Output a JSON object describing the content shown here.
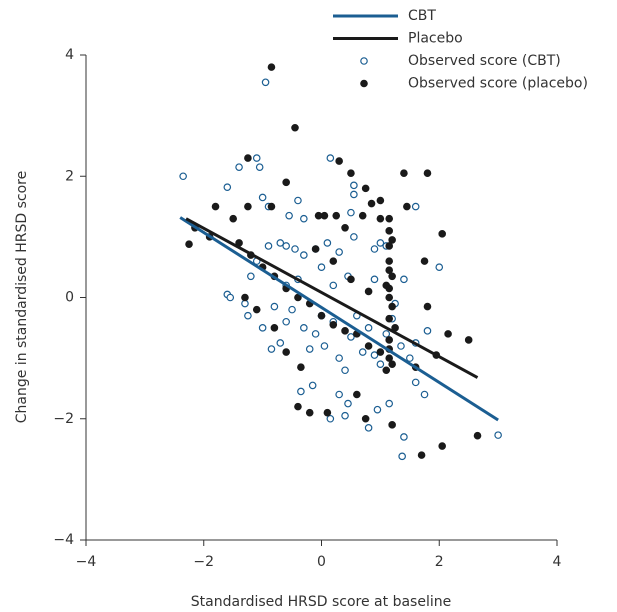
{
  "chart_data": {
    "type": "scatter",
    "x_label": "Standardised HRSD score at baseline",
    "y_label": "Change in standardised HRSD score",
    "xlim": [
      -4,
      4
    ],
    "ylim": [
      -4,
      4
    ],
    "xticks": [
      {
        "value": -4,
        "label": "−4"
      },
      {
        "value": -2,
        "label": "−2"
      },
      0,
      2,
      4
    ],
    "yticks": [
      {
        "value": -4,
        "label": "−4"
      },
      {
        "value": -2,
        "label": "−2"
      },
      0,
      2,
      4
    ],
    "legend": "top-right",
    "series": [
      {
        "name": "CBT",
        "type": "line",
        "color": "#1b5e92",
        "x": [
          -2.4,
          3.0
        ],
        "values": [
          1.32,
          -2.02
        ]
      },
      {
        "name": "Placebo",
        "type": "line",
        "color": "#1a1a1a",
        "x": [
          -2.3,
          2.65
        ],
        "values": [
          1.3,
          -1.32
        ]
      },
      {
        "name": "Observed score (CBT)",
        "type": "scatter",
        "marker": "open",
        "color": "#1b5e92",
        "x": [
          -2.35,
          -0.95,
          -1.6,
          -1.4,
          -1.1,
          -1.05,
          -0.4,
          -1.0,
          -0.9,
          0.15,
          0.55,
          0.55,
          -0.55,
          -0.3,
          0.5,
          1.6,
          2.0,
          -1.6,
          -1.55,
          -1.3,
          -1.25,
          -1.2,
          -1.1,
          -0.9,
          -0.7,
          -0.6,
          -0.45,
          -0.3,
          -0.1,
          0.0,
          0.1,
          0.3,
          0.55,
          0.9,
          1.0,
          1.1,
          1.4,
          -1.0,
          -0.85,
          -0.7,
          -0.6,
          -0.5,
          -0.4,
          -0.3,
          -0.2,
          -0.1,
          0.0,
          0.05,
          0.2,
          0.3,
          0.4,
          0.5,
          0.6,
          0.7,
          0.8,
          0.9,
          1.0,
          1.1,
          1.2,
          1.35,
          1.5,
          1.6,
          1.8,
          1.75,
          1.4,
          0.8,
          0.4,
          0.15,
          -0.35,
          -0.15,
          0.3,
          0.45,
          0.95,
          1.6,
          3.0,
          1.15,
          -0.8,
          -0.6,
          0.2,
          0.45,
          0.9,
          1.25,
          1.37
        ],
        "values": [
          2.0,
          3.55,
          1.82,
          2.15,
          2.3,
          2.15,
          1.6,
          1.65,
          1.5,
          2.3,
          1.85,
          1.7,
          1.35,
          1.3,
          1.4,
          1.5,
          0.5,
          0.05,
          0.0,
          -0.1,
          -0.3,
          0.35,
          0.6,
          0.85,
          0.9,
          0.85,
          0.8,
          0.7,
          0.8,
          0.5,
          0.9,
          0.75,
          1.0,
          0.8,
          0.9,
          0.85,
          0.3,
          -0.5,
          -0.85,
          -0.75,
          -0.4,
          -0.2,
          0.3,
          -0.5,
          -0.85,
          -0.6,
          -0.3,
          -0.8,
          -0.4,
          -1.0,
          -1.2,
          -0.65,
          -0.3,
          -0.9,
          -0.5,
          -0.95,
          -1.1,
          -0.6,
          -0.35,
          -0.8,
          -1.0,
          -1.4,
          -0.55,
          -1.6,
          -2.3,
          -2.15,
          -1.95,
          -2.0,
          -1.55,
          -1.45,
          -1.6,
          -1.75,
          -1.85,
          -0.75,
          -2.27,
          -1.75,
          -0.15,
          0.2,
          0.2,
          0.35,
          0.3,
          -0.1,
          -2.62
        ]
      },
      {
        "name": "Observed score (placebo)",
        "type": "scatter",
        "marker": "filled",
        "color": "#1a1a1a",
        "x": [
          -0.85,
          -0.45,
          -1.25,
          -0.6,
          -1.8,
          -2.15,
          -2.25,
          -1.9,
          -1.5,
          -1.25,
          -0.85,
          0.3,
          0.5,
          0.75,
          1.4,
          0.85,
          0.4,
          0.05,
          -0.05,
          0.25,
          0.7,
          1.0,
          1.15,
          1.2,
          1.15,
          1.15,
          1.15,
          1.2,
          1.15,
          1.15,
          1.2,
          1.15,
          1.25,
          1.15,
          1.15,
          1.15,
          1.1,
          1.6,
          1.45,
          1.8,
          1.15,
          1.0,
          -1.4,
          -1.2,
          -1.0,
          -0.8,
          -0.6,
          -0.4,
          -0.2,
          0.0,
          0.2,
          0.4,
          0.6,
          0.8,
          1.0,
          1.2,
          -1.3,
          -1.1,
          -0.8,
          -0.6,
          -0.35,
          -0.2,
          -0.4,
          0.1,
          0.6,
          0.75,
          1.2,
          1.7,
          2.05,
          2.65,
          1.95,
          2.15,
          1.8,
          1.75,
          2.5,
          -0.1,
          0.2,
          0.5,
          0.8,
          1.1,
          2.05
        ],
        "values": [
          3.8,
          2.8,
          2.3,
          1.9,
          1.5,
          1.15,
          0.88,
          1.0,
          1.3,
          1.5,
          1.5,
          2.25,
          2.05,
          1.8,
          2.05,
          1.55,
          1.15,
          1.35,
          1.35,
          1.35,
          1.35,
          1.3,
          1.1,
          0.95,
          0.85,
          0.6,
          0.45,
          0.35,
          0.15,
          0.0,
          -0.15,
          -0.35,
          -0.5,
          -0.7,
          -0.85,
          -1.0,
          -1.2,
          -1.15,
          1.5,
          2.05,
          1.3,
          1.6,
          0.9,
          0.7,
          0.5,
          0.35,
          0.15,
          0.0,
          -0.1,
          -0.3,
          -0.45,
          -0.55,
          -0.6,
          -0.8,
          -0.9,
          -1.1,
          0.0,
          -0.2,
          -0.5,
          -0.9,
          -1.15,
          -1.9,
          -1.8,
          -1.9,
          -1.6,
          -2.0,
          -2.1,
          -2.6,
          -2.45,
          -2.28,
          -0.95,
          -0.6,
          -0.15,
          0.6,
          -0.7,
          0.8,
          0.6,
          0.3,
          0.1,
          0.2,
          1.05
        ]
      }
    ]
  }
}
